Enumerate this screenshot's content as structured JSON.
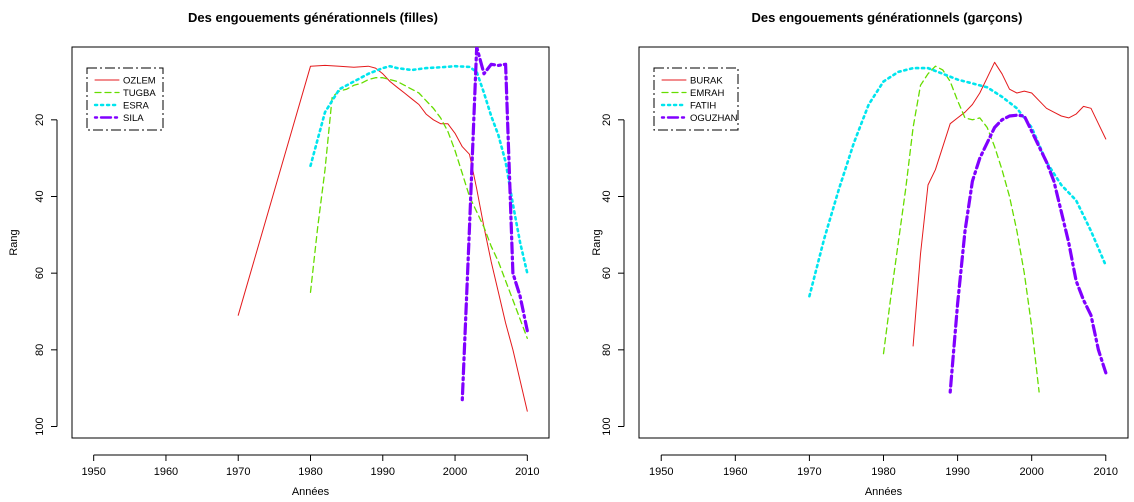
{
  "chart_data": [
    {
      "type": "line",
      "title": "Des engouements générationnels (filles)",
      "xlabel": "Années",
      "ylabel": "Rang",
      "xlim": [
        1947,
        2013
      ],
      "ylim": [
        103,
        1
      ],
      "y_reversed": true,
      "xticks": [
        1950,
        1960,
        1970,
        1980,
        1990,
        2000,
        2010
      ],
      "yticks": [
        20,
        40,
        60,
        80,
        100
      ],
      "legend_position": "top-left",
      "series": [
        {
          "name": "OZLEM",
          "color": "#e41a1c",
          "dash": "solid",
          "width": 1,
          "x": [
            1970,
            1980,
            1982,
            1984,
            1986,
            1988,
            1989,
            1990,
            1991,
            1992,
            1993,
            1994,
            1995,
            1996,
            1997,
            1998,
            1999,
            2000,
            2001,
            2002,
            2003,
            2004,
            2005,
            2006,
            2007,
            2008,
            2009,
            2010
          ],
          "y": [
            71,
            6,
            5.8,
            6,
            6.3,
            6,
            6.5,
            8,
            10,
            11.5,
            13,
            14.5,
            16,
            18.5,
            20,
            21,
            21,
            23.5,
            27,
            29,
            38,
            48,
            57,
            65,
            73,
            80,
            88,
            96
          ]
        },
        {
          "name": "TUGBA",
          "color": "#66dd00",
          "dash": "dashed",
          "width": 1.3,
          "x": [
            1980,
            1981,
            1982,
            1983,
            1984,
            1985,
            1986,
            1987,
            1988,
            1989,
            1990,
            1991,
            1992,
            1993,
            1994,
            1995,
            1996,
            1997,
            1998,
            1999,
            2000,
            2001,
            2002,
            2003,
            2004,
            2005,
            2006,
            2007,
            2008,
            2009,
            2010
          ],
          "y": [
            65,
            48,
            33,
            14,
            12.5,
            12,
            11,
            10.5,
            9.5,
            9,
            9,
            9.5,
            10,
            11,
            12,
            13,
            15,
            17,
            19.5,
            23,
            28,
            34,
            40,
            44,
            48,
            53,
            57,
            62,
            67,
            72,
            77
          ]
        },
        {
          "name": "ESRA",
          "color": "#00e5ee",
          "dash": "dotted",
          "width": 2.6,
          "x": [
            1980,
            1982,
            1983,
            1984,
            1986,
            1988,
            1990,
            1991,
            1992,
            1994,
            1996,
            1998,
            2000,
            2002,
            2003,
            2004,
            2005,
            2006,
            2007,
            2008,
            2009,
            2010
          ],
          "y": [
            32,
            18,
            15,
            12,
            10,
            8,
            6.5,
            6,
            6.5,
            7,
            6.5,
            6.3,
            6,
            6.2,
            7.5,
            13,
            19,
            24,
            31,
            42,
            52,
            60
          ]
        },
        {
          "name": "SILA",
          "color": "#8000ff",
          "dash": "dashdot",
          "width": 3.2,
          "x": [
            2001,
            2002,
            2003,
            2004,
            2005,
            2006,
            2007,
            2008,
            2009,
            2010
          ],
          "y": [
            93,
            48,
            1,
            8,
            5.5,
            5.8,
            5.5,
            60,
            66,
            75
          ]
        }
      ]
    },
    {
      "type": "line",
      "title": "Des engouements générationnels (garçons)",
      "xlabel": "Années",
      "ylabel": "Rang",
      "xlim": [
        1947,
        2013
      ],
      "ylim": [
        103,
        1
      ],
      "y_reversed": true,
      "xticks": [
        1950,
        1960,
        1970,
        1980,
        1990,
        2000,
        2010
      ],
      "yticks": [
        20,
        40,
        60,
        80,
        100
      ],
      "legend_position": "top-left",
      "series": [
        {
          "name": "BURAK",
          "color": "#e41a1c",
          "dash": "solid",
          "width": 1,
          "x": [
            1984,
            1985,
            1986,
            1987,
            1988,
            1989,
            1990,
            1991,
            1992,
            1993,
            1994,
            1995,
            1996,
            1997,
            1998,
            1999,
            2000,
            2001,
            2002,
            2003,
            2004,
            2005,
            2006,
            2007,
            2008,
            2009,
            2010
          ],
          "y": [
            79,
            55,
            37,
            33,
            27,
            21,
            19.5,
            18,
            16,
            13,
            9,
            5,
            8,
            12,
            13,
            12.5,
            13,
            15,
            17,
            18,
            19,
            19.5,
            18.5,
            16.5,
            17,
            21,
            25
          ]
        },
        {
          "name": "EMRAH",
          "color": "#66dd00",
          "dash": "dashed",
          "width": 1.3,
          "x": [
            1980,
            1981,
            1982,
            1983,
            1984,
            1985,
            1986,
            1987,
            1988,
            1989,
            1990,
            1991,
            1992,
            1993,
            1994,
            1995,
            1996,
            1997,
            1998,
            1999,
            2000,
            2001
          ],
          "y": [
            81,
            66,
            52,
            38,
            22,
            11,
            8,
            6,
            7,
            10,
            15,
            19.5,
            20,
            19.5,
            22,
            27,
            33,
            40,
            49,
            60,
            74,
            91
          ]
        },
        {
          "name": "FATIH",
          "color": "#00e5ee",
          "dash": "dotted",
          "width": 2.6,
          "x": [
            1970,
            1972,
            1974,
            1976,
            1978,
            1980,
            1982,
            1984,
            1986,
            1988,
            1990,
            1992,
            1994,
            1996,
            1998,
            2000,
            2002,
            2004,
            2006,
            2008,
            2010
          ],
          "y": [
            66,
            51,
            38,
            26,
            16,
            10,
            7.5,
            6.5,
            6.5,
            8,
            9.5,
            10.5,
            11.5,
            14,
            17,
            22,
            31,
            37,
            41,
            49,
            58
          ]
        },
        {
          "name": "OGUZHAN",
          "color": "#8000ff",
          "dash": "dashdot",
          "width": 3.2,
          "x": [
            1989,
            1990,
            1991,
            1992,
            1993,
            1994,
            1995,
            1996,
            1997,
            1998,
            1999,
            2000,
            2001,
            2002,
            2003,
            2004,
            2005,
            2006,
            2007,
            2008,
            2009,
            2010
          ],
          "y": [
            91,
            68,
            49,
            36,
            30,
            26,
            22,
            20,
            19,
            18.8,
            19,
            23,
            27,
            31,
            36,
            44,
            52,
            62,
            67,
            71,
            80,
            86
          ]
        }
      ]
    }
  ]
}
